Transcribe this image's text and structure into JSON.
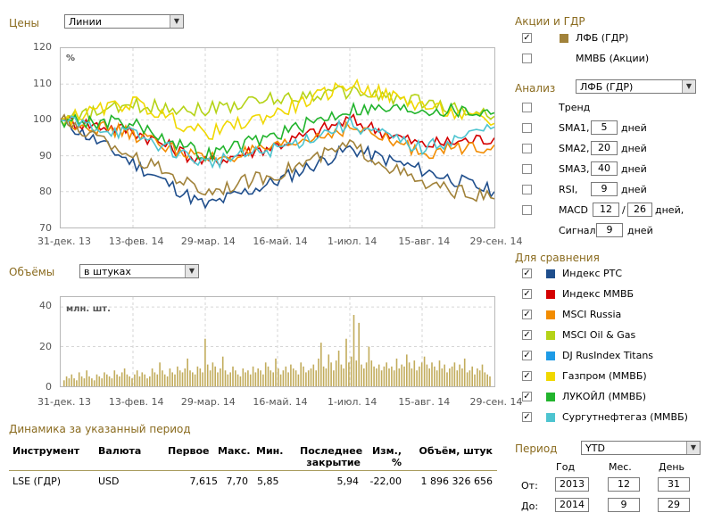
{
  "prices": {
    "title": "Цены",
    "mode_value": "Линии",
    "percent_label": "%",
    "y_ticks": [
      "120",
      "110",
      "100",
      "90",
      "80",
      "70"
    ],
    "x_ticks": [
      "31-дек. 13",
      "13-фев. 14",
      "29-мар. 14",
      "16-май. 14",
      "1-июл. 14",
      "15-авг. 14",
      "29-сен. 14"
    ]
  },
  "volumes": {
    "title": "Объёмы",
    "mode_value": "в штуках",
    "unit_label": "млн. шт.",
    "y_ticks": [
      "40",
      "20",
      "0"
    ],
    "x_ticks": [
      "31-дек. 13",
      "13-фев. 14",
      "29-мар. 14",
      "16-май. 14",
      "1-июл. 14",
      "15-авг. 14",
      "29-сен. 14"
    ]
  },
  "chart_data": [
    {
      "type": "line",
      "title": "",
      "ylabel": "%",
      "ylim": [
        70,
        120
      ],
      "x": [
        "31-дек. 13",
        "13-фев. 14",
        "29-мар. 14",
        "16-май. 14",
        "1-июл. 14",
        "15-авг. 14",
        "29-сен. 14"
      ],
      "series": [
        {
          "name": "Индекс РТС",
          "color": "#1f4e8c",
          "values": [
            100,
            88,
            76,
            83,
            92,
            86,
            80
          ]
        },
        {
          "name": "Индекс ММВБ",
          "color": "#d40000",
          "values": [
            100,
            97,
            88,
            93,
            100,
            93,
            95
          ]
        },
        {
          "name": "MSCI Russia",
          "color": "#f28c00",
          "values": [
            100,
            96,
            89,
            92,
            98,
            91,
            93
          ]
        },
        {
          "name": "MSCI Oil & Gas",
          "color": "#b5d317",
          "values": [
            100,
            104,
            103,
            106,
            108,
            105,
            101
          ]
        },
        {
          "name": "Газпром (ММВБ)",
          "color": "#f0d800",
          "values": [
            100,
            105,
            96,
            102,
            110,
            104,
            99
          ]
        },
        {
          "name": "ЛУКОЙЛ (ММВБ)",
          "color": "#22b42d",
          "values": [
            100,
            99,
            90,
            96,
            103,
            103,
            102
          ]
        },
        {
          "name": "Сургутнефтегаз (ММВБ)",
          "color": "#4dc4d0",
          "values": [
            100,
            96,
            88,
            92,
            99,
            92,
            98
          ]
        },
        {
          "name": "ЛФБ (ГДР)",
          "color": "#a1823a",
          "values": [
            100,
            90,
            80,
            85,
            93,
            82,
            78
          ]
        }
      ]
    },
    {
      "type": "bar",
      "title": "",
      "ylabel": "млн. шт.",
      "ylim": [
        0,
        40
      ],
      "color": "#c2ac5c",
      "values": [
        3,
        5,
        4,
        6,
        4,
        3,
        7,
        5,
        4,
        8,
        5,
        4,
        3,
        6,
        5,
        4,
        7,
        6,
        5,
        4,
        8,
        6,
        5,
        7,
        9,
        6,
        5,
        4,
        6,
        8,
        5,
        7,
        6,
        4,
        5,
        9,
        7,
        6,
        12,
        8,
        6,
        5,
        9,
        7,
        6,
        10,
        8,
        7,
        9,
        14,
        8,
        7,
        6,
        10,
        9,
        7,
        24,
        11,
        8,
        12,
        10,
        7,
        9,
        15,
        8,
        6,
        7,
        10,
        8,
        6,
        5,
        9,
        7,
        8,
        6,
        10,
        7,
        9,
        8,
        6,
        12,
        10,
        8,
        7,
        14,
        9,
        6,
        8,
        10,
        7,
        11,
        9,
        8,
        6,
        12,
        10,
        7,
        8,
        9,
        11,
        8,
        14,
        22,
        10,
        9,
        16,
        12,
        8,
        13,
        18,
        11,
        9,
        24,
        12,
        15,
        36,
        13,
        32,
        11,
        9,
        12,
        20,
        13,
        10,
        9,
        11,
        8,
        10,
        12,
        9,
        10,
        8,
        14,
        9,
        11,
        10,
        16,
        12,
        9,
        13,
        8,
        10,
        12,
        15,
        11,
        9,
        12,
        10,
        8,
        13,
        9,
        11,
        7,
        9,
        10,
        12,
        8,
        11,
        9,
        14,
        7,
        8,
        10,
        6,
        9,
        8,
        11,
        7,
        6,
        5
      ]
    }
  ],
  "sidebar": {
    "stocks_title": "Акции и ГДР",
    "stocks": [
      {
        "label": "ЛФБ (ГДР)",
        "checked": true,
        "color": "#a1823a"
      },
      {
        "label": "ММВБ (Акции)",
        "checked": false
      }
    ],
    "analysis_title": "Анализ",
    "analysis_select": "ЛФБ (ГДР)",
    "trend_label": "Тренд",
    "sma1_label": "SMA1,",
    "sma1_value": "5",
    "sma2_label": "SMA2,",
    "sma2_value": "20",
    "sma3_label": "SMA3,",
    "sma3_value": "40",
    "rsi_label": "RSI,",
    "rsi_value": "9",
    "macd_label": "MACD",
    "macd_v1": "12",
    "macd_sep": "/",
    "macd_v2": "26",
    "days_label": "дней",
    "days_comma": "дней,",
    "signal_label": "Сигнал",
    "signal_value": "9",
    "compare_title": "Для сравнения",
    "compare": [
      {
        "label": "Индекс РТС",
        "checked": true,
        "color": "#1f4e8c"
      },
      {
        "label": "Индекс ММВБ",
        "checked": true,
        "color": "#d40000"
      },
      {
        "label": "MSCI Russia",
        "checked": true,
        "color": "#f28c00"
      },
      {
        "label": "MSCI Oil & Gas",
        "checked": true,
        "color": "#b5d317"
      },
      {
        "label": "DJ RusIndex Titans",
        "checked": true,
        "color": "#1e9be6"
      },
      {
        "label": "Газпром (ММВБ)",
        "checked": true,
        "color": "#f0d800"
      },
      {
        "label": "ЛУКОЙЛ (ММВБ)",
        "checked": true,
        "color": "#22b42d"
      },
      {
        "label": "Сургутнефтегаз (ММВБ)",
        "checked": true,
        "color": "#4dc4d0"
      }
    ],
    "period_title": "Период",
    "period_select": "YTD",
    "year_label": "Год",
    "month_label": "Мес.",
    "day_label": "День",
    "from_label": "От:",
    "from_year": "2013",
    "from_month": "12",
    "from_day": "31",
    "to_label": "До:",
    "to_year": "2014",
    "to_month": "9",
    "to_day": "29"
  },
  "dynamics": {
    "title": "Динамика за указанный период",
    "headers": {
      "instrument": "Инструмент",
      "currency": "Валюта",
      "first": "Первое",
      "max": "Макс.",
      "min": "Мин.",
      "last_line1": "Последнее",
      "last_line2": "закрытие",
      "change_line1": "Изм.,",
      "change_line2": "%",
      "volume": "Объём, штук"
    },
    "row": {
      "instrument": "LSE (ГДР)",
      "currency": "USD",
      "first": "7,615",
      "max": "7,70",
      "min": "5,85",
      "last": "5,94",
      "change": "-22,00",
      "volume": "1 896 326 656"
    }
  }
}
